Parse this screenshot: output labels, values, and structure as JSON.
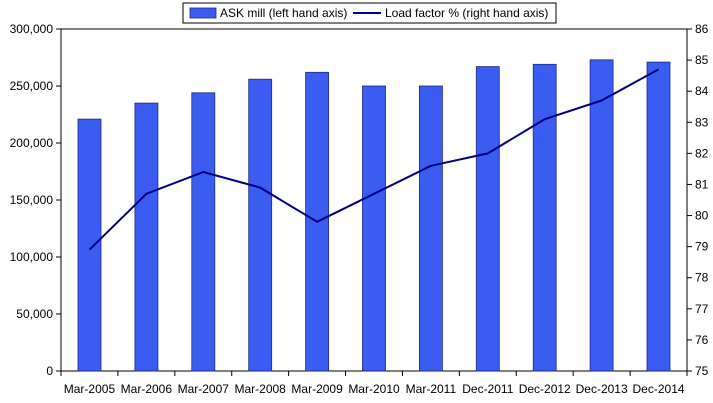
{
  "chart_data": {
    "type": "bar",
    "categories": [
      "Mar-2005",
      "Mar-2006",
      "Mar-2007",
      "Mar-2008",
      "Mar-2009",
      "Mar-2010",
      "Mar-2011",
      "Dec-2011",
      "Dec-2012",
      "Dec-2013",
      "Dec-2014"
    ],
    "series": [
      {
        "name": "ASK mill (left hand axis)",
        "type": "bar",
        "axis": "left",
        "color": "#3b5cf0",
        "values": [
          221000,
          235000,
          244000,
          256000,
          262000,
          250000,
          250000,
          267000,
          269000,
          273000,
          271000
        ]
      },
      {
        "name": "Load factor % (right hand axis)",
        "type": "line",
        "axis": "right",
        "color": "#000080",
        "values": [
          78.9,
          80.7,
          81.4,
          80.9,
          79.8,
          80.7,
          81.6,
          82.0,
          83.1,
          83.7,
          84.7
        ]
      }
    ],
    "y_left": {
      "lim": [
        0,
        300000
      ],
      "ticks": [
        "0",
        "50,000",
        "100,000",
        "150,000",
        "200,000",
        "250,000",
        "300,000"
      ]
    },
    "y_right": {
      "lim": [
        75,
        86
      ],
      "ticks": [
        "75",
        "76",
        "77",
        "78",
        "79",
        "80",
        "81",
        "82",
        "83",
        "84",
        "85",
        "86"
      ]
    },
    "legend_position": "top-center",
    "grid": false
  }
}
